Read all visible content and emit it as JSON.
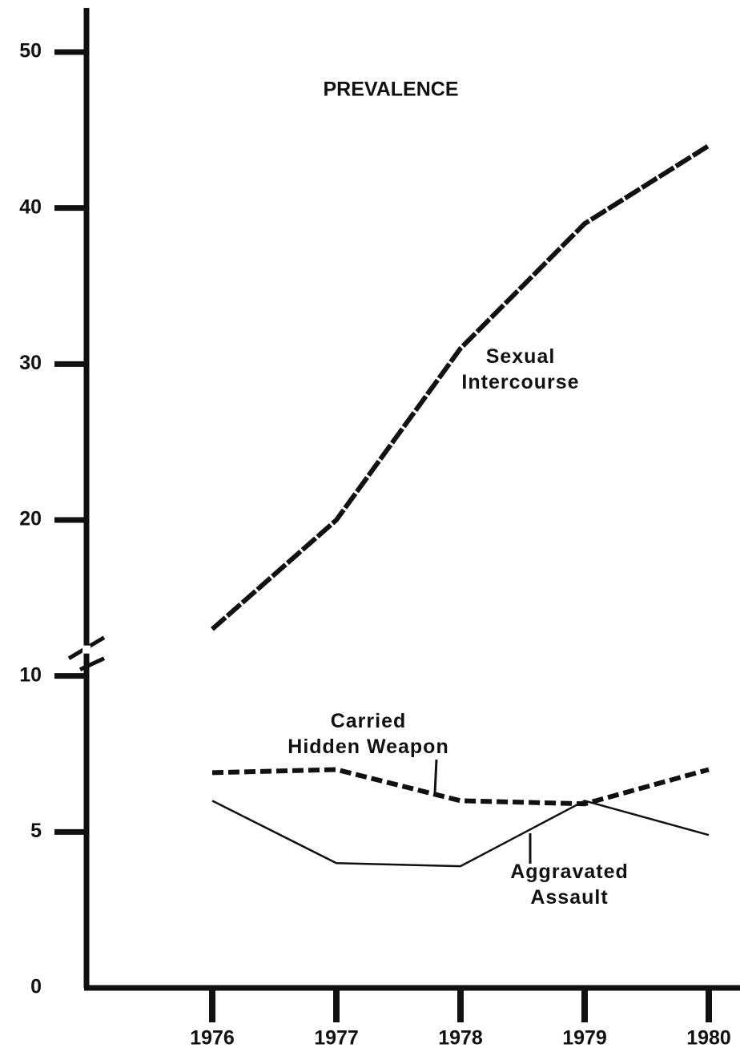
{
  "chart_data": {
    "type": "line",
    "title": "PREVALENCE",
    "categories": [
      "1976",
      "1977",
      "1978",
      "1979",
      "1980"
    ],
    "series": [
      {
        "name": "Sexual\nIntercourse",
        "color": "#111111",
        "style": "long-dash",
        "values": [
          13,
          20,
          31,
          39,
          44
        ]
      },
      {
        "name": "Carried\nHidden Weapon",
        "color": "#111111",
        "style": "dash",
        "values": [
          6.9,
          7,
          6,
          5.9,
          7
        ]
      },
      {
        "name": "Aggravated\nAssault",
        "color": "#111111",
        "style": "solid",
        "values": [
          6,
          4,
          3.9,
          6,
          4.9
        ]
      }
    ],
    "ylim": [
      0,
      50
    ],
    "axis_break": 10,
    "yticks": [
      0,
      5,
      10,
      20,
      30,
      40,
      50
    ],
    "grid": false
  }
}
